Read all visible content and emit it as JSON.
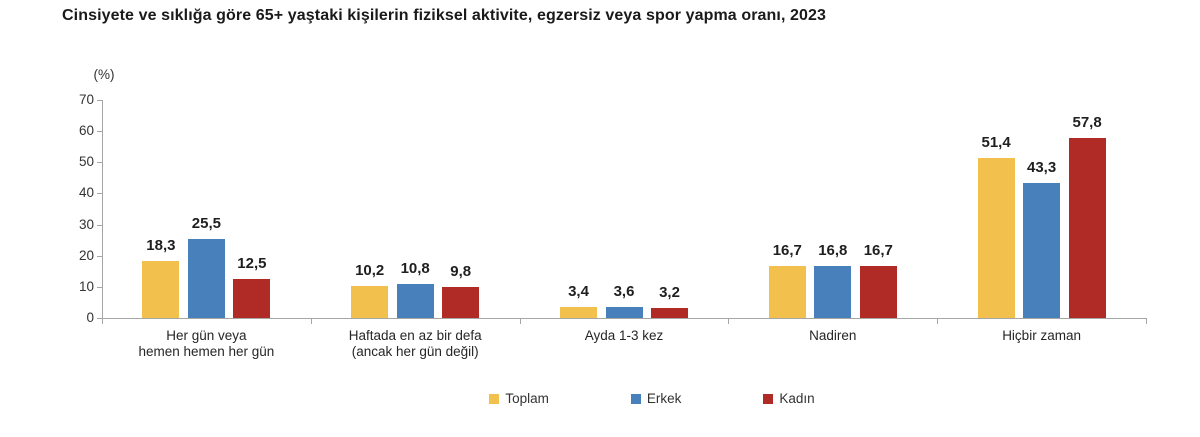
{
  "title": "Cinsiyete ve sıklığa göre 65+ yaştaki kişilerin fiziksel aktivite, egzersiz veya spor yapma oranı, 2023",
  "y_axis": {
    "unit_label": "(%)",
    "ticks": [
      0,
      10,
      20,
      30,
      40,
      50,
      60,
      70
    ]
  },
  "colors": {
    "toplam": "#F2C14D",
    "erkek": "#4880BC",
    "kadin": "#B02B25",
    "axis": "#A6A6A6"
  },
  "chart_data": {
    "type": "bar",
    "title": "Cinsiyete ve sıklığa göre 65+ yaştaki kişilerin fiziksel aktivite, egzersiz veya spor yapma oranı, 2023",
    "categories": [
      "Her gün veya\nhemen hemen her gün",
      "Haftada en az bir defa\n(ancak her gün değil)",
      "Ayda 1-3 kez",
      "Nadiren",
      "Hiçbir zaman"
    ],
    "series": [
      {
        "name": "Toplam",
        "color": "#F2C14D",
        "values": [
          18.3,
          10.2,
          3.4,
          16.7,
          51.4
        ]
      },
      {
        "name": "Erkek",
        "color": "#4880BC",
        "values": [
          25.5,
          10.8,
          3.6,
          16.8,
          43.3
        ]
      },
      {
        "name": "Kadın",
        "color": "#B02B25",
        "values": [
          12.5,
          9.8,
          3.2,
          16.7,
          57.8
        ]
      }
    ],
    "value_labels": [
      "18,3",
      "25,5",
      "12,5",
      "10,2",
      "10,8",
      "9,8",
      "3,4",
      "3,6",
      "3,2",
      "16,7",
      "16,8",
      "16,7",
      "51,4",
      "43,3",
      "57,8"
    ],
    "decimal_separator": ",",
    "xlabel": "",
    "ylabel": "(%)",
    "ylim": [
      0,
      70
    ],
    "grid": false,
    "legend_position": "bottom"
  }
}
